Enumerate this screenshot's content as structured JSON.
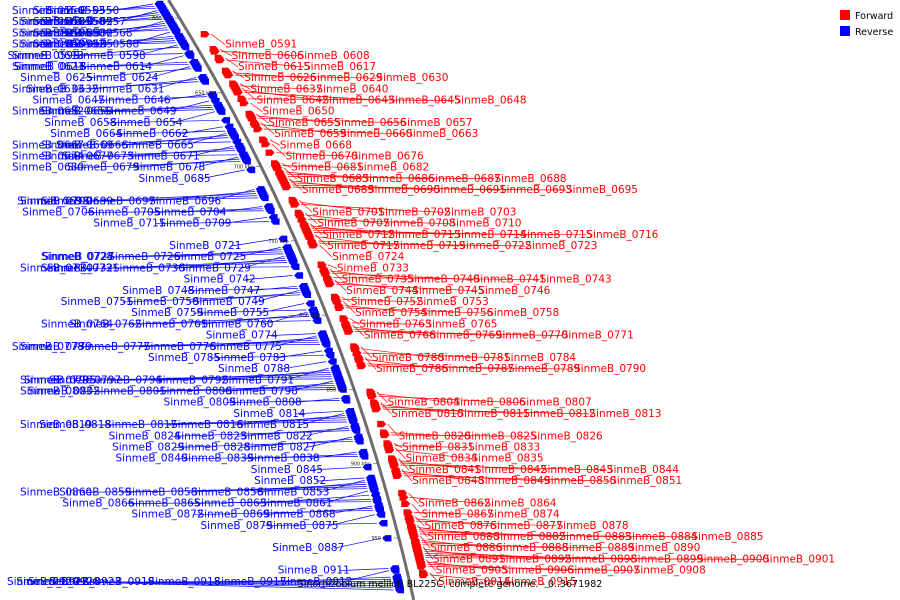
{
  "legend": [
    {
      "label": "Forward",
      "color": "#ff0000"
    },
    {
      "label": "Reverse",
      "color": "#0000ff"
    }
  ],
  "caption": "Sinorhizobium meliloti BL225C, complete genome. - 0..3671982",
  "ticks": [
    "600 kbp",
    "650 kbp",
    "700 kbp",
    "750 kbp",
    "800 kbp",
    "850 kbp",
    "900 kbp",
    "950 kbp"
  ],
  "genes": [
    {
      "n": "SinmeB_0550",
      "s": "r"
    },
    {
      "n": "SinmeB_0553",
      "s": "r"
    },
    {
      "n": "SinmeB_0556",
      "s": "r"
    },
    {
      "n": "SinmeB_0557",
      "s": "r"
    },
    {
      "n": "SinmeB_0558",
      "s": "r"
    },
    {
      "n": "SinmeB_0561",
      "s": "r"
    },
    {
      "n": "SinmeB_0562",
      "s": "r"
    },
    {
      "n": "SinmeB_0563",
      "s": "r"
    },
    {
      "n": "SinmeB_0568",
      "s": "r"
    },
    {
      "n": "SinmeB_0580",
      "s": "r"
    },
    {
      "n": "SinmeB_0581",
      "s": "r"
    },
    {
      "n": "SinmeB_0582",
      "s": "r"
    },
    {
      "n": "SinmeB_0586",
      "s": "r"
    },
    {
      "n": "SinmeB_0588",
      "s": "r"
    },
    {
      "n": "SinmeB_0591",
      "s": "f"
    },
    {
      "n": "SinmeB_0592",
      "s": "r"
    },
    {
      "n": "SinmeB_0593",
      "s": "r"
    },
    {
      "n": "SinmeB_0595",
      "s": "r"
    },
    {
      "n": "SinmeB_0597",
      "s": "r"
    },
    {
      "n": "SinmeB_0598",
      "s": "r"
    },
    {
      "n": "SinmeB_0599",
      "s": "r"
    },
    {
      "n": "SinmeB_0606",
      "s": "f"
    },
    {
      "n": "SinmeB_0608",
      "s": "f"
    },
    {
      "n": "SinmeB_0613",
      "s": "r"
    },
    {
      "n": "SinmeB_0614",
      "s": "r"
    },
    {
      "n": "SinmeB_0615",
      "s": "f"
    },
    {
      "n": "SinmeB_0617",
      "s": "f"
    },
    {
      "n": "SinmeB_0618",
      "s": "r"
    },
    {
      "n": "SinmeB_0623",
      "s": "r"
    },
    {
      "n": "SinmeB_0624",
      "s": "r"
    },
    {
      "n": "SinmeB_0625",
      "s": "r"
    },
    {
      "n": "SinmeB_0626",
      "s": "f"
    },
    {
      "n": "SinmeB_0629",
      "s": "f"
    },
    {
      "n": "SinmeB_0630",
      "s": "f"
    },
    {
      "n": "SinmeB_0631",
      "s": "r"
    },
    {
      "n": "SinmeB_0632",
      "s": "r"
    },
    {
      "n": "SinmeB_0633",
      "s": "r"
    },
    {
      "n": "SinmeB_0637",
      "s": "f"
    },
    {
      "n": "SinmeB_0640",
      "s": "f"
    },
    {
      "n": "SinmeB_0642",
      "s": "f"
    },
    {
      "n": "SinmeB_0643",
      "s": "f"
    },
    {
      "n": "SinmeB_0645",
      "s": "f"
    },
    {
      "n": "SinmeB_0646",
      "s": "r"
    },
    {
      "n": "SinmeB_0647",
      "s": "r"
    },
    {
      "n": "SinmeB_0648",
      "s": "f"
    },
    {
      "n": "SinmeB_0649",
      "s": "r"
    },
    {
      "n": "SinmeB_0650",
      "s": "f"
    },
    {
      "n": "SinmeB_0651",
      "s": "r"
    },
    {
      "n": "SinmeB_0652",
      "s": "r"
    },
    {
      "n": "SinmeB_0653",
      "s": "r"
    },
    {
      "n": "SinmeB_0654",
      "s": "r"
    },
    {
      "n": "SinmeB_0655",
      "s": "f"
    },
    {
      "n": "SinmeB_0656",
      "s": "f"
    },
    {
      "n": "SinmeB_0657",
      "s": "f"
    },
    {
      "n": "SinmeB_0658",
      "s": "r"
    },
    {
      "n": "SinmeB_0659",
      "s": "f"
    },
    {
      "n": "SinmeB_0660",
      "s": "f"
    },
    {
      "n": "SinmeB_0662",
      "s": "r"
    },
    {
      "n": "SinmeB_0663",
      "s": "f"
    },
    {
      "n": "SinmeB_0664",
      "s": "r"
    },
    {
      "n": "SinmeB_0665",
      "s": "r"
    },
    {
      "n": "SinmeB_0666",
      "s": "r"
    },
    {
      "n": "SinmeB_0667",
      "s": "r"
    },
    {
      "n": "SinmeB_0668",
      "s": "f"
    },
    {
      "n": "SinmeB_0669",
      "s": "r"
    },
    {
      "n": "SinmeB_0670",
      "s": "f"
    },
    {
      "n": "SinmeB_0671",
      "s": "r"
    },
    {
      "n": "SinmeB_0673",
      "s": "r"
    },
    {
      "n": "SinmeB_0674",
      "s": "r"
    },
    {
      "n": "SinmeB_0676",
      "s": "f"
    },
    {
      "n": "SinmeB_0677",
      "s": "r"
    },
    {
      "n": "SinmeB_0678",
      "s": "r"
    },
    {
      "n": "SinmeB_0679",
      "s": "r"
    },
    {
      "n": "SinmeB_0680",
      "s": "r"
    },
    {
      "n": "SinmeB_0681",
      "s": "f"
    },
    {
      "n": "SinmeB_0682",
      "s": "f"
    },
    {
      "n": "SinmeB_0683",
      "s": "f"
    },
    {
      "n": "SinmeB_0685",
      "s": "r"
    },
    {
      "n": "SinmeB_0686",
      "s": "f"
    },
    {
      "n": "SinmeB_0687",
      "s": "f"
    },
    {
      "n": "SinmeB_0688",
      "s": "f"
    },
    {
      "n": "SinmeB_0689",
      "s": "f"
    },
    {
      "n": "SinmeB_0690",
      "s": "f"
    },
    {
      "n": "SinmeB_0691",
      "s": "f"
    },
    {
      "n": "SinmeB_0693",
      "s": "f"
    },
    {
      "n": "SinmeB_0695",
      "s": "f"
    },
    {
      "n": "SinmeB_0696",
      "s": "r"
    },
    {
      "n": "SinmeB_0697",
      "s": "r"
    },
    {
      "n": "SinmeB_0698",
      "s": "r"
    },
    {
      "n": "SinmeB_0699",
      "s": "r"
    },
    {
      "n": "SinmeB_0700",
      "s": "r"
    },
    {
      "n": "SinmeB_0701",
      "s": "f"
    },
    {
      "n": "SinmeB_0702",
      "s": "f"
    },
    {
      "n": "SinmeB_0703",
      "s": "f"
    },
    {
      "n": "SinmeB_0704",
      "s": "r"
    },
    {
      "n": "SinmeB_0705",
      "s": "r"
    },
    {
      "n": "SinmeB_0706",
      "s": "r"
    },
    {
      "n": "SinmeB_0707",
      "s": "f"
    },
    {
      "n": "SinmeB_0708",
      "s": "f"
    },
    {
      "n": "SinmeB_0709",
      "s": "r"
    },
    {
      "n": "SinmeB_0710",
      "s": "f"
    },
    {
      "n": "SinmeB_0711",
      "s": "r"
    },
    {
      "n": "SinmeB_0712",
      "s": "f"
    },
    {
      "n": "SinmeB_0713",
      "s": "f"
    },
    {
      "n": "SinmeB_0714",
      "s": "f"
    },
    {
      "n": "SinmeB_0715",
      "s": "f"
    },
    {
      "n": "SinmeB_0716",
      "s": "f"
    },
    {
      "n": "SinmeB_0717",
      "s": "f"
    },
    {
      "n": "SinmeB_0719",
      "s": "f"
    },
    {
      "n": "SinmeB_0721",
      "s": "r"
    },
    {
      "n": "SinmeB_0722",
      "s": "f"
    },
    {
      "n": "SinmeB_0723",
      "s": "f"
    },
    {
      "n": "SinmeB_0724",
      "s": "f"
    },
    {
      "n": "SinmeB_0725",
      "s": "r"
    },
    {
      "n": "SinmeB_0726",
      "s": "r"
    },
    {
      "n": "SinmeB_0727",
      "s": "r"
    },
    {
      "n": "SinmeB_0728",
      "s": "r"
    },
    {
      "n": "SinmeB_0729",
      "s": "r"
    },
    {
      "n": "SinmeB_0730",
      "s": "r"
    },
    {
      "n": "SinmeB_0731",
      "s": "r"
    },
    {
      "n": "SinmeB_0732",
      "s": "r"
    },
    {
      "n": "SinmeB_0733",
      "s": "f"
    },
    {
      "n": "SinmeB_0734",
      "s": "r"
    },
    {
      "n": "SinmeB_0735",
      "s": "f"
    },
    {
      "n": "SinmeB_0740",
      "s": "f"
    },
    {
      "n": "SinmeB_0741",
      "s": "f"
    },
    {
      "n": "SinmeB_0742",
      "s": "r"
    },
    {
      "n": "SinmeB_0743",
      "s": "f"
    },
    {
      "n": "SinmeB_0744",
      "s": "f"
    },
    {
      "n": "SinmeB_0745",
      "s": "f"
    },
    {
      "n": "SinmeB_0746",
      "s": "f"
    },
    {
      "n": "SinmeB_0747",
      "s": "r"
    },
    {
      "n": "SinmeB_0748",
      "s": "r"
    },
    {
      "n": "SinmeB_0749",
      "s": "r"
    },
    {
      "n": "SinmeB_0750",
      "s": "r"
    },
    {
      "n": "SinmeB_0751",
      "s": "r"
    },
    {
      "n": "SinmeB_0752",
      "s": "f"
    },
    {
      "n": "SinmeB_0753",
      "s": "f"
    },
    {
      "n": "SinmeB_0754",
      "s": "f"
    },
    {
      "n": "SinmeB_0755",
      "s": "r"
    },
    {
      "n": "SinmeB_0756",
      "s": "f"
    },
    {
      "n": "SinmeB_0758",
      "s": "f"
    },
    {
      "n": "SinmeB_0759",
      "s": "r"
    },
    {
      "n": "SinmeB_0760",
      "s": "r"
    },
    {
      "n": "SinmeB_0761",
      "s": "r"
    },
    {
      "n": "SinmeB_0762",
      "s": "r"
    },
    {
      "n": "SinmeB_0763",
      "s": "f"
    },
    {
      "n": "SinmeB_0764",
      "s": "r"
    },
    {
      "n": "SinmeB_0765",
      "s": "f"
    },
    {
      "n": "SinmeB_0766",
      "s": "f"
    },
    {
      "n": "SinmeB_0769",
      "s": "f"
    },
    {
      "n": "SinmeB_0770",
      "s": "f"
    },
    {
      "n": "SinmeB_0771",
      "s": "f"
    },
    {
      "n": "SinmeB_0774",
      "s": "r"
    },
    {
      "n": "SinmeB_0775",
      "s": "r"
    },
    {
      "n": "SinmeB_0776",
      "s": "r"
    },
    {
      "n": "SinmeB_0777",
      "s": "r"
    },
    {
      "n": "SinmeB_0778",
      "s": "r"
    },
    {
      "n": "SinmeB_0779",
      "s": "r"
    },
    {
      "n": "SinmeB_0780",
      "s": "f"
    },
    {
      "n": "SinmeB_0781",
      "s": "f"
    },
    {
      "n": "SinmeB_0783",
      "s": "r"
    },
    {
      "n": "SinmeB_0784",
      "s": "f"
    },
    {
      "n": "SinmeB_0785",
      "s": "r"
    },
    {
      "n": "SinmeB_0786",
      "s": "f"
    },
    {
      "n": "SinmeB_0787",
      "s": "f"
    },
    {
      "n": "SinmeB_0788",
      "s": "r"
    },
    {
      "n": "SinmeB_0789",
      "s": "f"
    },
    {
      "n": "SinmeB_0790",
      "s": "f"
    },
    {
      "n": "SinmeB_0791",
      "s": "r"
    },
    {
      "n": "SinmeB_0792",
      "s": "r"
    },
    {
      "n": "SinmeB_0794",
      "s": "r"
    },
    {
      "n": "SinmeB_0795",
      "s": "r"
    },
    {
      "n": "SinmeB_0796",
      "s": "r"
    },
    {
      "n": "SinmeB_0797",
      "s": "r"
    },
    {
      "n": "SinmeB_0798",
      "s": "r"
    },
    {
      "n": "SinmeB_0800",
      "s": "r"
    },
    {
      "n": "SinmeB_0801",
      "s": "r"
    },
    {
      "n": "SinmeB_0802",
      "s": "r"
    },
    {
      "n": "SinmeB_0803",
      "s": "r"
    },
    {
      "n": "SinmeB_0804",
      "s": "f"
    },
    {
      "n": "SinmeB_0806",
      "s": "f"
    },
    {
      "n": "SinmeB_0807",
      "s": "f"
    },
    {
      "n": "SinmeB_0808",
      "s": "r"
    },
    {
      "n": "SinmeB_0809",
      "s": "r"
    },
    {
      "n": "SinmeB_0810",
      "s": "f"
    },
    {
      "n": "SinmeB_0811",
      "s": "f"
    },
    {
      "n": "SinmeB_0812",
      "s": "f"
    },
    {
      "n": "SinmeB_0813",
      "s": "f"
    },
    {
      "n": "SinmeB_0814",
      "s": "r"
    },
    {
      "n": "SinmeB_0815",
      "s": "r"
    },
    {
      "n": "SinmeB_0816",
      "s": "r"
    },
    {
      "n": "SinmeB_0817",
      "s": "r"
    },
    {
      "n": "SinmeB_0818",
      "s": "r"
    },
    {
      "n": "SinmeB_0819",
      "s": "r"
    },
    {
      "n": "SinmeB_0820",
      "s": "f"
    },
    {
      "n": "SinmeB_0822",
      "s": "r"
    },
    {
      "n": "SinmeB_0823",
      "s": "r"
    },
    {
      "n": "SinmeB_0824",
      "s": "r"
    },
    {
      "n": "SinmeB_0825",
      "s": "f"
    },
    {
      "n": "SinmeB_0826",
      "s": "f"
    },
    {
      "n": "SinmeB_0827",
      "s": "r"
    },
    {
      "n": "SinmeB_0828",
      "s": "r"
    },
    {
      "n": "SinmeB_0829",
      "s": "r"
    },
    {
      "n": "SinmeB_0831",
      "s": "f"
    },
    {
      "n": "SinmeB_0833",
      "s": "f"
    },
    {
      "n": "SinmeB_0834",
      "s": "f"
    },
    {
      "n": "SinmeB_0835",
      "s": "f"
    },
    {
      "n": "SinmeB_0838",
      "s": "r"
    },
    {
      "n": "SinmeB_0839",
      "s": "r"
    },
    {
      "n": "SinmeB_0840",
      "s": "r"
    },
    {
      "n": "SinmeB_0841",
      "s": "f"
    },
    {
      "n": "SinmeB_0842",
      "s": "f"
    },
    {
      "n": "SinmeB_0843",
      "s": "f"
    },
    {
      "n": "SinmeB_0844",
      "s": "f"
    },
    {
      "n": "SinmeB_0845",
      "s": "r"
    },
    {
      "n": "SinmeB_0848",
      "s": "f"
    },
    {
      "n": "SinmeB_0849",
      "s": "f"
    },
    {
      "n": "SinmeB_0850",
      "s": "f"
    },
    {
      "n": "SinmeB_0851",
      "s": "f"
    },
    {
      "n": "SinmeB_0852",
      "s": "r"
    },
    {
      "n": "SinmeB_0853",
      "s": "r"
    },
    {
      "n": "SinmeB_0856",
      "s": "r"
    },
    {
      "n": "SinmeB_0858",
      "s": "r"
    },
    {
      "n": "SinmeB_0859",
      "s": "r"
    },
    {
      "n": "SinmeB_0860",
      "s": "r"
    },
    {
      "n": "SinmeB_0861",
      "s": "r"
    },
    {
      "n": "SinmeB_0862",
      "s": "f"
    },
    {
      "n": "SinmeB_0863",
      "s": "r"
    },
    {
      "n": "SinmeB_0864",
      "s": "f"
    },
    {
      "n": "SinmeB_0865",
      "s": "r"
    },
    {
      "n": "SinmeB_0866",
      "s": "r"
    },
    {
      "n": "SinmeB_0867",
      "s": "f"
    },
    {
      "n": "SinmeB_0868",
      "s": "r"
    },
    {
      "n": "SinmeB_0869",
      "s": "r"
    },
    {
      "n": "SinmeB_0872",
      "s": "r"
    },
    {
      "n": "SinmeB_0874",
      "s": "f"
    },
    {
      "n": "SinmeB_0875",
      "s": "r"
    },
    {
      "n": "SinmeB_0876",
      "s": "f"
    },
    {
      "n": "SinmeB_0877",
      "s": "f"
    },
    {
      "n": "SinmeB_0878",
      "s": "f"
    },
    {
      "n": "SinmeB_0879",
      "s": "r"
    },
    {
      "n": "SinmeB_0880",
      "s": "f"
    },
    {
      "n": "SinmeB_0882",
      "s": "f"
    },
    {
      "n": "SinmeB_0883",
      "s": "f"
    },
    {
      "n": "SinmeB_0884",
      "s": "f"
    },
    {
      "n": "SinmeB_0885",
      "s": "f"
    },
    {
      "n": "SinmeB_0886",
      "s": "f"
    },
    {
      "n": "SinmeB_0887",
      "s": "r"
    },
    {
      "n": "SinmeB_0888",
      "s": "f"
    },
    {
      "n": "SinmeB_0889",
      "s": "f"
    },
    {
      "n": "SinmeB_0890",
      "s": "f"
    },
    {
      "n": "SinmeB_0891",
      "s": "f"
    },
    {
      "n": "SinmeB_0892",
      "s": "f"
    },
    {
      "n": "SinmeB_0898",
      "s": "f"
    },
    {
      "n": "SinmeB_0899",
      "s": "f"
    },
    {
      "n": "SinmeB_0900",
      "s": "f"
    },
    {
      "n": "SinmeB_0901",
      "s": "f"
    },
    {
      "n": "SinmeB_0905",
      "s": "f"
    },
    {
      "n": "SinmeB_0906",
      "s": "f"
    },
    {
      "n": "SinmeB_0907",
      "s": "f"
    },
    {
      "n": "SinmeB_0908",
      "s": "f"
    },
    {
      "n": "SinmeB_0911",
      "s": "r"
    },
    {
      "n": "SinmeB_0912",
      "s": "r"
    },
    {
      "n": "SinmeB_0914",
      "s": "f"
    },
    {
      "n": "SinmeB_0915",
      "s": "f"
    },
    {
      "n": "SinmeB_0917",
      "s": "r"
    },
    {
      "n": "SinmeB_0918",
      "s": "r"
    },
    {
      "n": "SinmeB_0919",
      "s": "r"
    },
    {
      "n": "SinmeB_0922",
      "s": "r"
    },
    {
      "n": "SinmeB_0923",
      "s": "r"
    },
    {
      "n": "SinmeB_0928",
      "s": "r"
    },
    {
      "n": "SinmeB_0929",
      "s": "r"
    }
  ]
}
